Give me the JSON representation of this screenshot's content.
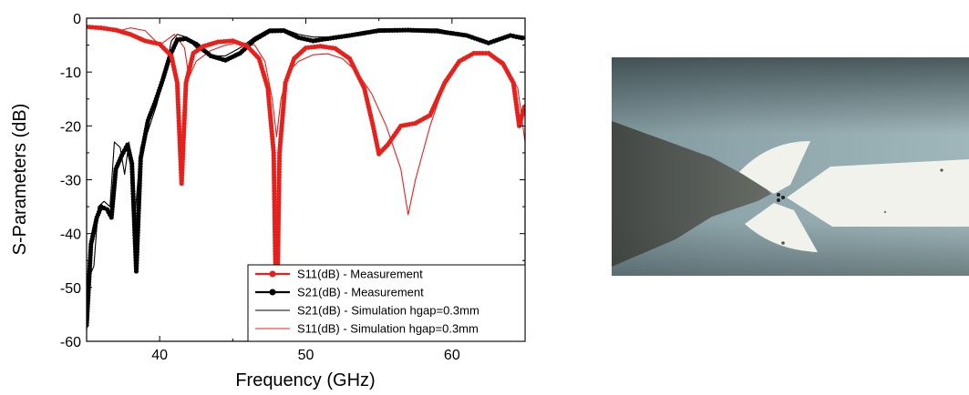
{
  "chart_data": {
    "type": "line",
    "xlabel": "Frequency (GHz)",
    "ylabel": "S-Parameters (dB)",
    "xlim": [
      35,
      65
    ],
    "ylim": [
      -60,
      0
    ],
    "x_ticks": [
      40,
      50,
      60
    ],
    "y_ticks": [
      0,
      -10,
      -20,
      -30,
      -40,
      -50,
      -60
    ],
    "grid": false,
    "legend_position": "bottom-right",
    "series": [
      {
        "name": "S11(dB) - Measurement",
        "color": "#e8201c",
        "style": "line-markers",
        "points": [
          [
            35,
            -1.6
          ],
          [
            36,
            -1.8
          ],
          [
            37,
            -2.2
          ],
          [
            38,
            -3
          ],
          [
            39,
            -4.2
          ],
          [
            40,
            -4.8
          ],
          [
            40.8,
            -7
          ],
          [
            41.2,
            -12
          ],
          [
            41.5,
            -30.7
          ],
          [
            41.8,
            -12
          ],
          [
            42.3,
            -6.5
          ],
          [
            43,
            -5.2
          ],
          [
            44,
            -4.4
          ],
          [
            45,
            -4.2
          ],
          [
            46,
            -5.2
          ],
          [
            46.8,
            -7.5
          ],
          [
            47.4,
            -13
          ],
          [
            47.8,
            -25
          ],
          [
            48,
            -60
          ],
          [
            48.2,
            -25
          ],
          [
            48.6,
            -12
          ],
          [
            49.2,
            -7.5
          ],
          [
            50,
            -5.5
          ],
          [
            51,
            -5.2
          ],
          [
            52,
            -5.6
          ],
          [
            53,
            -7.5
          ],
          [
            54,
            -13
          ],
          [
            54.6,
            -20
          ],
          [
            55,
            -25.2
          ],
          [
            55.6,
            -23.5
          ],
          [
            56.5,
            -20
          ],
          [
            57.5,
            -19.5
          ],
          [
            58.5,
            -18
          ],
          [
            59.5,
            -12
          ],
          [
            60.5,
            -8
          ],
          [
            61.5,
            -6.5
          ],
          [
            62.5,
            -6.5
          ],
          [
            63.5,
            -8.5
          ],
          [
            64.2,
            -12
          ],
          [
            64.6,
            -20
          ],
          [
            65,
            -16
          ]
        ]
      },
      {
        "name": "S21(dB) - Measurement",
        "color": "#000000",
        "style": "line-markers",
        "points": [
          [
            35,
            -57
          ],
          [
            35.3,
            -42
          ],
          [
            35.7,
            -37
          ],
          [
            36,
            -35
          ],
          [
            36.4,
            -35.5
          ],
          [
            36.7,
            -37
          ],
          [
            37,
            -28
          ],
          [
            37.4,
            -25.5
          ],
          [
            37.8,
            -23.5
          ],
          [
            38.1,
            -27
          ],
          [
            38.4,
            -47
          ],
          [
            38.7,
            -26
          ],
          [
            39.2,
            -19
          ],
          [
            39.7,
            -15.5
          ],
          [
            40.2,
            -11.5
          ],
          [
            40.7,
            -7
          ],
          [
            41.2,
            -4
          ],
          [
            41.8,
            -3.8
          ],
          [
            42.5,
            -4.8
          ],
          [
            43.5,
            -7
          ],
          [
            44.5,
            -7.8
          ],
          [
            45.5,
            -6.5
          ],
          [
            46.5,
            -4
          ],
          [
            47.5,
            -2.4
          ],
          [
            48.5,
            -2.3
          ],
          [
            49.5,
            -3.6
          ],
          [
            50.5,
            -4.2
          ],
          [
            51.5,
            -3.8
          ],
          [
            53,
            -3.2
          ],
          [
            55,
            -2.3
          ],
          [
            57,
            -2.2
          ],
          [
            59,
            -2.4
          ],
          [
            61,
            -3.2
          ],
          [
            62.5,
            -4.6
          ],
          [
            64,
            -3.2
          ],
          [
            65,
            -3.8
          ]
        ]
      },
      {
        "name": "S21(dB) - Simulation hgap=0.3mm",
        "color": "#000000",
        "style": "line",
        "points": [
          [
            35,
            -58
          ],
          [
            35.2,
            -48
          ],
          [
            35.5,
            -46
          ],
          [
            35.8,
            -35
          ],
          [
            36.2,
            -34
          ],
          [
            36.6,
            -35
          ],
          [
            36.9,
            -23
          ],
          [
            37.3,
            -24
          ],
          [
            37.6,
            -29
          ],
          [
            37.9,
            -23
          ],
          [
            38.3,
            -37
          ],
          [
            38.7,
            -24
          ],
          [
            39.2,
            -21
          ],
          [
            39.8,
            -16
          ],
          [
            40.3,
            -11
          ],
          [
            40.8,
            -4.2
          ],
          [
            41.2,
            -3
          ],
          [
            41.8,
            -3.5
          ],
          [
            42.5,
            -5.5
          ],
          [
            43.5,
            -7
          ],
          [
            44.5,
            -7
          ],
          [
            45.5,
            -5.5
          ],
          [
            46.5,
            -3.5
          ],
          [
            47.5,
            -2
          ],
          [
            48.5,
            -2
          ],
          [
            49.5,
            -3
          ],
          [
            50.5,
            -3.5
          ],
          [
            51.5,
            -3.5
          ],
          [
            53,
            -3
          ],
          [
            55,
            -2
          ],
          [
            57,
            -2
          ],
          [
            59,
            -2
          ],
          [
            61,
            -3.2
          ],
          [
            62.5,
            -4.5
          ],
          [
            64,
            -3
          ],
          [
            65,
            -3.4
          ]
        ]
      },
      {
        "name": "S11(dB) - Simulation hgap=0.3mm",
        "color": "#e8201c",
        "style": "line",
        "points": [
          [
            35,
            -1.5
          ],
          [
            36,
            -2
          ],
          [
            37,
            -2.5
          ],
          [
            38,
            -1.8
          ],
          [
            39,
            -2.3
          ],
          [
            40,
            -5
          ],
          [
            40.5,
            -4
          ],
          [
            41,
            -3
          ],
          [
            41.7,
            -5.5
          ],
          [
            42,
            -11
          ],
          [
            42.5,
            -8
          ],
          [
            43.5,
            -6
          ],
          [
            44.5,
            -5
          ],
          [
            45.5,
            -4.5
          ],
          [
            46.5,
            -5
          ],
          [
            47.2,
            -8
          ],
          [
            47.7,
            -15
          ],
          [
            48,
            -22
          ],
          [
            48.3,
            -15
          ],
          [
            48.8,
            -10
          ],
          [
            49.5,
            -8
          ],
          [
            50.5,
            -6.8
          ],
          [
            51.5,
            -6.6
          ],
          [
            52.5,
            -7.5
          ],
          [
            53.5,
            -10
          ],
          [
            54.5,
            -14
          ],
          [
            55.5,
            -20
          ],
          [
            56.5,
            -28
          ],
          [
            57,
            -36.5
          ],
          [
            57.5,
            -30
          ],
          [
            58.5,
            -20
          ],
          [
            59.5,
            -12
          ],
          [
            60.5,
            -8
          ],
          [
            61.5,
            -6.5
          ],
          [
            62.5,
            -6.5
          ],
          [
            63.5,
            -8
          ],
          [
            64.5,
            -13
          ],
          [
            65,
            -23
          ]
        ]
      }
    ]
  },
  "photo": {
    "background_color": "#8fa7ad",
    "probe_color": "#4a4c48",
    "metal_color": "#f2f2ec"
  }
}
